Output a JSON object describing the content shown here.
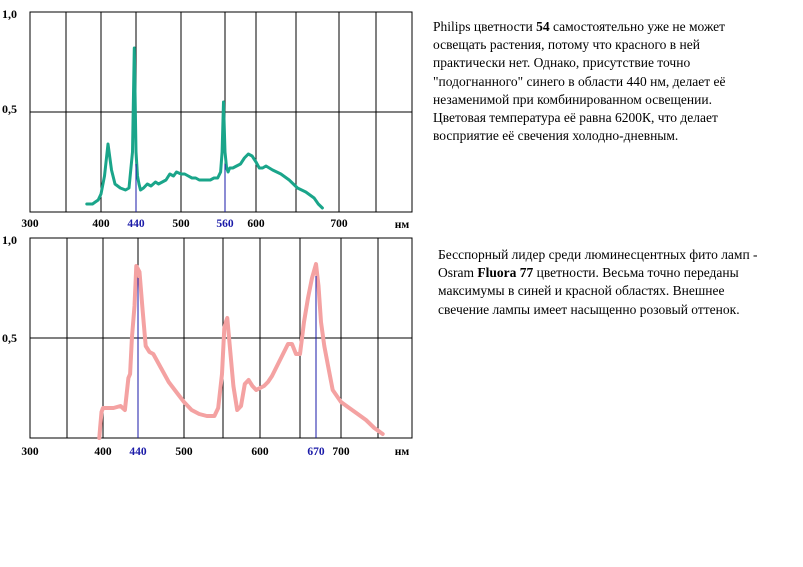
{
  "chart_data": [
    {
      "type": "line",
      "color": "#1aa58a",
      "marker_color": "#1a1aa8",
      "xlabel": "нм",
      "ylim": [
        0,
        1.0
      ],
      "y_ticks": [
        "1,0",
        "0,5"
      ],
      "x_ticks": [
        "300",
        "400",
        "440",
        "500",
        "560",
        "600",
        "700"
      ],
      "highlight_ticks": [
        "440",
        "560"
      ],
      "grid": true,
      "series": [
        {
          "x": [
            380,
            388,
            392,
            396,
            400,
            404,
            408,
            412,
            416,
            422,
            428,
            432,
            436,
            438,
            440,
            442,
            444,
            446,
            450,
            455,
            460,
            466,
            470,
            475,
            480,
            485,
            490,
            494,
            500,
            505,
            510,
            515,
            520,
            525,
            530,
            535,
            540,
            545,
            550,
            554,
            556,
            558,
            560,
            562,
            564,
            566,
            570,
            575,
            580,
            585,
            590,
            595,
            600,
            604,
            608,
            612,
            620,
            630,
            640,
            650,
            660,
            670,
            675,
            680
          ],
          "y": [
            0.04,
            0.04,
            0.05,
            0.06,
            0.09,
            0.18,
            0.34,
            0.21,
            0.14,
            0.12,
            0.11,
            0.12,
            0.3,
            0.82,
            0.3,
            0.18,
            0.14,
            0.11,
            0.12,
            0.14,
            0.13,
            0.15,
            0.14,
            0.15,
            0.16,
            0.19,
            0.18,
            0.2,
            0.19,
            0.19,
            0.18,
            0.17,
            0.17,
            0.16,
            0.16,
            0.16,
            0.16,
            0.17,
            0.17,
            0.2,
            0.3,
            0.55,
            0.3,
            0.22,
            0.2,
            0.22,
            0.22,
            0.23,
            0.24,
            0.27,
            0.29,
            0.28,
            0.25,
            0.22,
            0.22,
            0.23,
            0.21,
            0.19,
            0.16,
            0.12,
            0.1,
            0.07,
            0.04,
            0.02
          ]
        }
      ]
    },
    {
      "type": "line",
      "color": "#f4a2a2",
      "marker_color": "#1a1aa8",
      "xlabel": "нм",
      "ylim": [
        0,
        1.0
      ],
      "y_ticks": [
        "1,0",
        "0,5"
      ],
      "x_ticks": [
        "300",
        "400",
        "440",
        "500",
        "600",
        "670",
        "700"
      ],
      "highlight_ticks": [
        "440",
        "670"
      ],
      "grid": true,
      "series": [
        {
          "x": [
            395,
            396,
            398,
            400,
            412,
            420,
            425,
            429,
            431,
            433,
            436,
            438,
            442,
            446,
            450,
            455,
            460,
            470,
            480,
            490,
            500,
            510,
            520,
            530,
            540,
            545,
            550,
            553,
            555,
            557,
            560,
            565,
            570,
            575,
            580,
            585,
            590,
            595,
            600,
            605,
            610,
            615,
            620,
            625,
            630,
            635,
            640,
            645,
            650,
            655,
            660,
            665,
            670,
            673,
            676,
            680,
            684,
            690,
            700,
            710,
            720,
            730,
            740,
            750
          ],
          "y": [
            0.0,
            0.05,
            0.13,
            0.15,
            0.15,
            0.16,
            0.14,
            0.3,
            0.32,
            0.5,
            0.66,
            0.86,
            0.83,
            0.64,
            0.46,
            0.43,
            0.42,
            0.35,
            0.28,
            0.23,
            0.18,
            0.14,
            0.12,
            0.11,
            0.11,
            0.15,
            0.32,
            0.55,
            0.58,
            0.6,
            0.47,
            0.26,
            0.14,
            0.16,
            0.27,
            0.29,
            0.26,
            0.24,
            0.25,
            0.26,
            0.28,
            0.31,
            0.35,
            0.39,
            0.43,
            0.47,
            0.47,
            0.42,
            0.42,
            0.58,
            0.7,
            0.8,
            0.87,
            0.76,
            0.58,
            0.46,
            0.37,
            0.24,
            0.18,
            0.15,
            0.12,
            0.09,
            0.05,
            0.02
          ]
        }
      ]
    }
  ],
  "descriptions": {
    "block1": {
      "p1": "Philips цветности ",
      "b1": "54",
      "p2": " самостоятельно уже не может освещать растения, потому что красного в ней практически нет. Однако, присутствие точно \"подогнанного\" синего в области 440 нм, делает её незаменимой при комбинированном освещении. Цветовая температура её равна 6200К, что делает восприятие её свечения  холодно-дневным."
    },
    "block2": {
      "p1": "Бесспорный лидер среди люминесцентных фито ламп - Osram ",
      "b1": "Fluora 77",
      "p2": " цветности. Весьма точно переданы максимумы в синей и красной областях. Внешнее свечение лампы имеет насыщенно розовый оттенок."
    }
  }
}
